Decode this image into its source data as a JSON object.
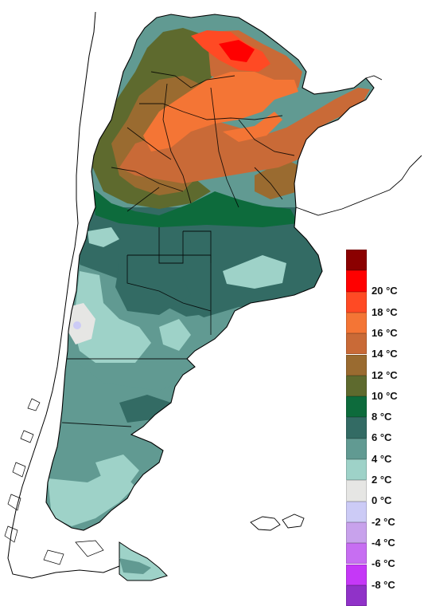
{
  "map": {
    "region": "Argentina",
    "colors": {
      "outline": "#000000",
      "background": "#ffffff"
    }
  },
  "legend": {
    "items": [
      {
        "label": "",
        "color": "#8b0000"
      },
      {
        "label": "20 °C",
        "color": "#ff0000"
      },
      {
        "label": "18 °C",
        "color": "#ff4a24"
      },
      {
        "label": "16 °C",
        "color": "#f47535"
      },
      {
        "label": "14 °C",
        "color": "#c96a37"
      },
      {
        "label": "12 °C",
        "color": "#9a6b30"
      },
      {
        "label": "10 °C",
        "color": "#5e6a2e"
      },
      {
        "label": "8 °C",
        "color": "#0d6b3c"
      },
      {
        "label": "6 °C",
        "color": "#336b64"
      },
      {
        "label": "4 °C",
        "color": "#619a92"
      },
      {
        "label": "2 °C",
        "color": "#9ed2c8"
      },
      {
        "label": "0 °C",
        "color": "#e6e6e4"
      },
      {
        "label": "-2 °C",
        "color": "#cccbf6"
      },
      {
        "label": "-4 °C",
        "color": "#c8a2ec"
      },
      {
        "label": "-6 °C",
        "color": "#c76ef2"
      },
      {
        "label": "-8 °C",
        "color": "#c538f7"
      },
      {
        "label": "",
        "color": "#9032c8"
      }
    ]
  }
}
